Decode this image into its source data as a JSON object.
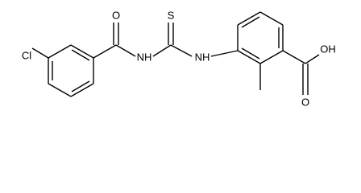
{
  "labels": [
    "Cl",
    "O",
    "NH",
    "S",
    "NH",
    "OH",
    "O"
  ]
}
